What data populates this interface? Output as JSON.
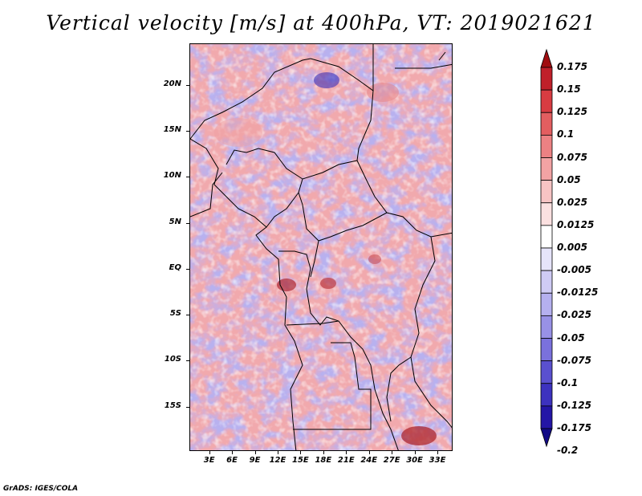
{
  "title": "Vertical velocity [m/s] at 400hPa, VT: 2019021621",
  "credit": "GrADS: IGES/COLA",
  "map": {
    "lat_labels": [
      "20N",
      "15N",
      "10N",
      "5N",
      "EQ",
      "5S",
      "10S",
      "15S"
    ],
    "lon_labels": [
      "3E",
      "6E",
      "9E",
      "12E",
      "15E",
      "18E",
      "21E",
      "24E",
      "27E",
      "30E",
      "33E"
    ],
    "lat_values": [
      20,
      15,
      10,
      5,
      0,
      -5,
      -10,
      -15
    ],
    "lon_values": [
      3,
      6,
      9,
      12,
      15,
      18,
      21,
      24,
      27,
      30,
      33
    ]
  },
  "colorbar": {
    "labels": [
      "0.175",
      "0.15",
      "0.125",
      "0.1",
      "0.075",
      "0.05",
      "0.025",
      "0.0125",
      "0.005",
      "-0.005",
      "-0.0125",
      "-0.025",
      "-0.05",
      "-0.075",
      "-0.1",
      "-0.125",
      "-0.175",
      "-0.2"
    ],
    "colors": [
      "#a00d10",
      "#c0202a",
      "#d83c42",
      "#e35e60",
      "#ec8183",
      "#f2a3a4",
      "#f7c4c4",
      "#fbe0e0",
      "#ffffff",
      "#e6e4fa",
      "#cfcbf5",
      "#b5b0ef",
      "#9891e6",
      "#7a71dc",
      "#5a50cf",
      "#3d32bf",
      "#2416a6",
      "#130b86"
    ]
  }
}
